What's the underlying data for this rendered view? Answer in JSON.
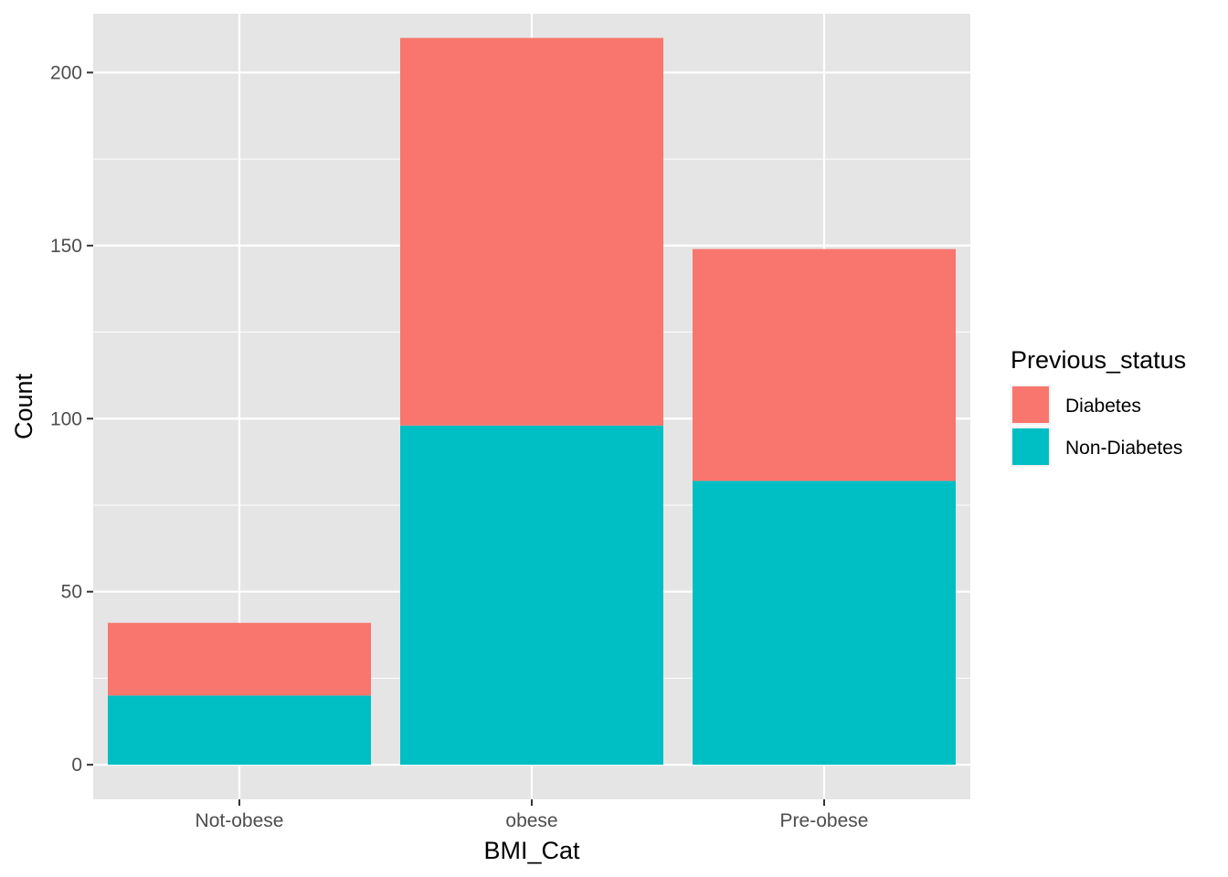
{
  "chart_data": {
    "type": "bar",
    "stacked": true,
    "categories": [
      "Not-obese",
      "obese",
      "Pre-obese"
    ],
    "series": [
      {
        "name": "Non-Diabetes",
        "values": [
          20,
          98,
          82
        ]
      },
      {
        "name": "Diabetes",
        "values": [
          21,
          112,
          67
        ]
      }
    ],
    "xlabel": "BMI_Cat",
    "ylabel": "Count",
    "ylim": [
      -10,
      217
    ],
    "yticks": [
      0,
      50,
      100,
      150,
      200
    ],
    "grid": true,
    "legend": {
      "title": "Previous_status",
      "placement": "right",
      "entries": [
        {
          "label": "Diabetes",
          "color": "#F8766D"
        },
        {
          "label": "Non-Diabetes",
          "color": "#00BFC4"
        }
      ]
    },
    "colors": {
      "Diabetes": "#F8766D",
      "Non-Diabetes": "#00BFC4",
      "panel": "#E5E5E5",
      "gridline": "#FFFFFF"
    }
  }
}
